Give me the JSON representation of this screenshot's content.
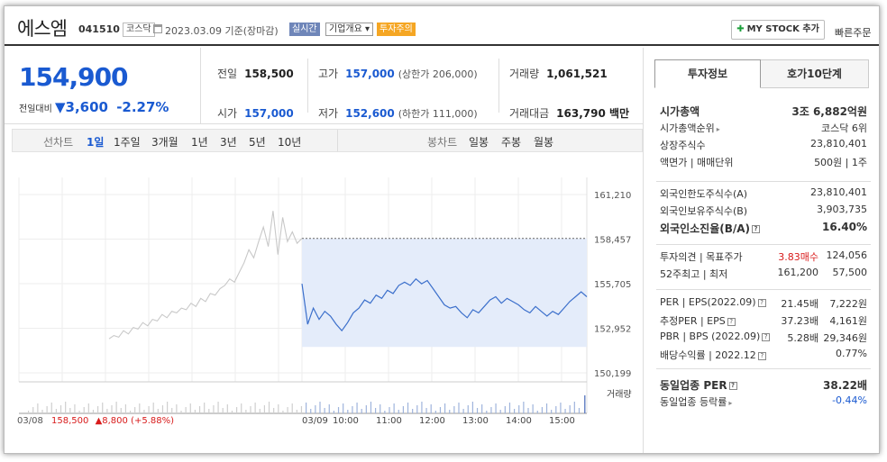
{
  "header": {
    "name": "에스엠",
    "code": "041510",
    "market": "코스닥",
    "date": "2023.03.09",
    "date_basis": "기준(장마감)",
    "realtime": "실시간",
    "overview": "기업개요",
    "warning": "투자주의",
    "mystock": "MY STOCK 추가",
    "quick_order": "빠른주문"
  },
  "price": {
    "current": "154,900",
    "change_label": "전일대비",
    "change_value": "3,600",
    "change_pct": "-2.27%"
  },
  "stats": {
    "prev_label": "전일",
    "prev": "158,500",
    "high_label": "고가",
    "high": "157,000",
    "high_sub": "(상한가 206,000)",
    "volume_label": "거래량",
    "volume": "1,061,521",
    "open_label": "시가",
    "open": "157,000",
    "low_label": "저가",
    "low": "152,600",
    "low_sub": "(하한가 111,000)",
    "amount_label": "거래대금",
    "amount": "163,790 백만"
  },
  "toolbar": {
    "line_label": "선차트",
    "line_periods": [
      "1일",
      "1주일",
      "3개월",
      "1년",
      "3년",
      "5년",
      "10년"
    ],
    "candle_label": "봉차트",
    "candle_periods": [
      "일봉",
      "주봉",
      "월봉"
    ]
  },
  "chart_data": {
    "type": "line",
    "y_ticks": [
      "161,210",
      "158,457",
      "155,705",
      "152,952",
      "150,199"
    ],
    "ylim": [
      150199,
      161210
    ],
    "x_ticks": [
      "03/09",
      "10:00",
      "11:00",
      "12:00",
      "13:00",
      "14:00",
      "15:00"
    ],
    "prev_day_label": "03/08",
    "prev_day_close": "158,500",
    "prev_day_change": "▲8,800 (+5.88%)",
    "volume_label": "거래량",
    "prev_close_line": 158500,
    "prev_day_series": [
      152300,
      152500,
      152400,
      152800,
      152600,
      153000,
      152900,
      153300,
      153100,
      153500,
      153400,
      153800,
      153600,
      154000,
      153900,
      154200,
      154100,
      154500,
      154300,
      154800,
      154600,
      155100,
      155000,
      155400,
      155600,
      156000,
      155800,
      156400,
      157000,
      157800,
      157300,
      158300,
      159200,
      158000,
      160200,
      157500,
      159800,
      158300,
      158900,
      158200,
      158500
    ],
    "today_series": [
      155700,
      153200,
      154200,
      153500,
      154000,
      153700,
      153200,
      152800,
      153300,
      153900,
      154200,
      154700,
      154500,
      155000,
      154800,
      155300,
      155100,
      155600,
      155800,
      155600,
      156000,
      155700,
      155900,
      155400,
      154900,
      154400,
      154200,
      154300,
      153900,
      153600,
      154100,
      153900,
      154300,
      154700,
      154900,
      154500,
      154800,
      154600,
      154400,
      154100,
      153900,
      154300,
      154000,
      153700,
      154000,
      153800,
      154200,
      154600,
      154900,
      155200,
      154900
    ]
  },
  "invest": {
    "tab_on": "투자정보",
    "tab_off": "호가10단계",
    "rows1": [
      {
        "l": "시가총액",
        "r": "3조 6,882억원",
        "bold": true
      },
      {
        "l": "시가총액순위",
        "r": "코스닥 6위",
        "arrow": true
      },
      {
        "l": "상장주식수",
        "r": "23,810,401"
      },
      {
        "l": "액면가 | 매매단위",
        "r": "500원 | 1주"
      }
    ],
    "rows2": [
      {
        "l": "외국인한도주식수(A)",
        "r": "23,810,401"
      },
      {
        "l": "외국인보유주식수(B)",
        "r": "3,903,735"
      },
      {
        "l": "외국인소진율(B/A)",
        "r": "16.40%",
        "bold": true,
        "q": true
      }
    ],
    "rows3": [
      {
        "l": "투자의견 | 목표주가",
        "r1": "3.83매수",
        "r": "124,056",
        "red": true
      },
      {
        "l": "52주최고 | 최저",
        "r1": "161,200",
        "r": "57,500"
      }
    ],
    "rows4": [
      {
        "l": "PER | EPS(2022.09)",
        "r1": "21.45배",
        "r": "7,222원",
        "q": true
      },
      {
        "l": "추정PER | EPS",
        "r1": "37.23배",
        "r": "4,161원",
        "q": true
      },
      {
        "l": "PBR | BPS (2022.09)",
        "r1": "5.28배",
        "r": "29,346원",
        "q": true
      },
      {
        "l": "배당수익률 | 2022.12",
        "r": "0.77%",
        "q": true
      }
    ],
    "rows5": [
      {
        "l": "동일업종 PER",
        "r": "38.22배",
        "bold": true,
        "q": true
      },
      {
        "l": "동일업종 등락률",
        "r": "-0.44%",
        "blue": true,
        "arrow": true
      }
    ]
  }
}
